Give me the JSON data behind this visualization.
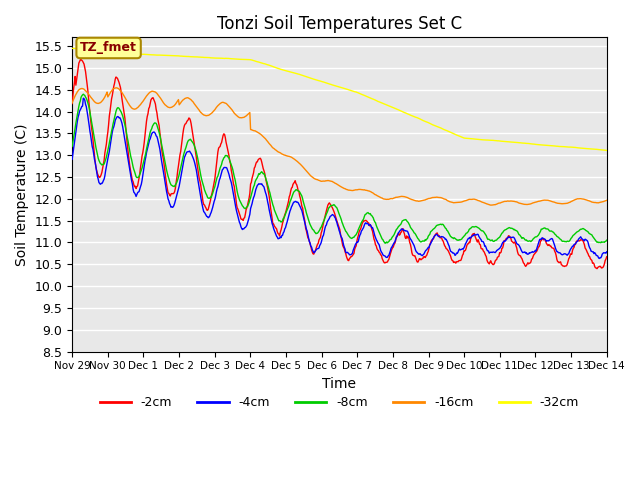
{
  "title": "Tonzi Soil Temperatures Set C",
  "xlabel": "Time",
  "ylabel": "Soil Temperature (C)",
  "ylim": [
    8.5,
    15.7
  ],
  "legend_labels": [
    "-2cm",
    "-4cm",
    "-8cm",
    "-16cm",
    "-32cm"
  ],
  "colors": [
    "#ff0000",
    "#0000ff",
    "#00cc00",
    "#ff8800",
    "#ffff00"
  ],
  "annotation_text": "TZ_fmet",
  "annotation_color": "#880000",
  "annotation_bg": "#ffff99",
  "background_color": "#e8e8e8",
  "xtick_labels": [
    "Nov 29",
    "Nov 30",
    "Dec 1",
    "Dec 2",
    "Dec 3",
    "Dec 4",
    "Dec 5",
    "Dec 6",
    "Dec 7",
    "Dec 8",
    "Dec 9",
    "Dec 10",
    "Dec 11",
    "Dec 12",
    "Dec 13",
    "Dec 14"
  ],
  "n_days": 15,
  "points_per_day": 48
}
